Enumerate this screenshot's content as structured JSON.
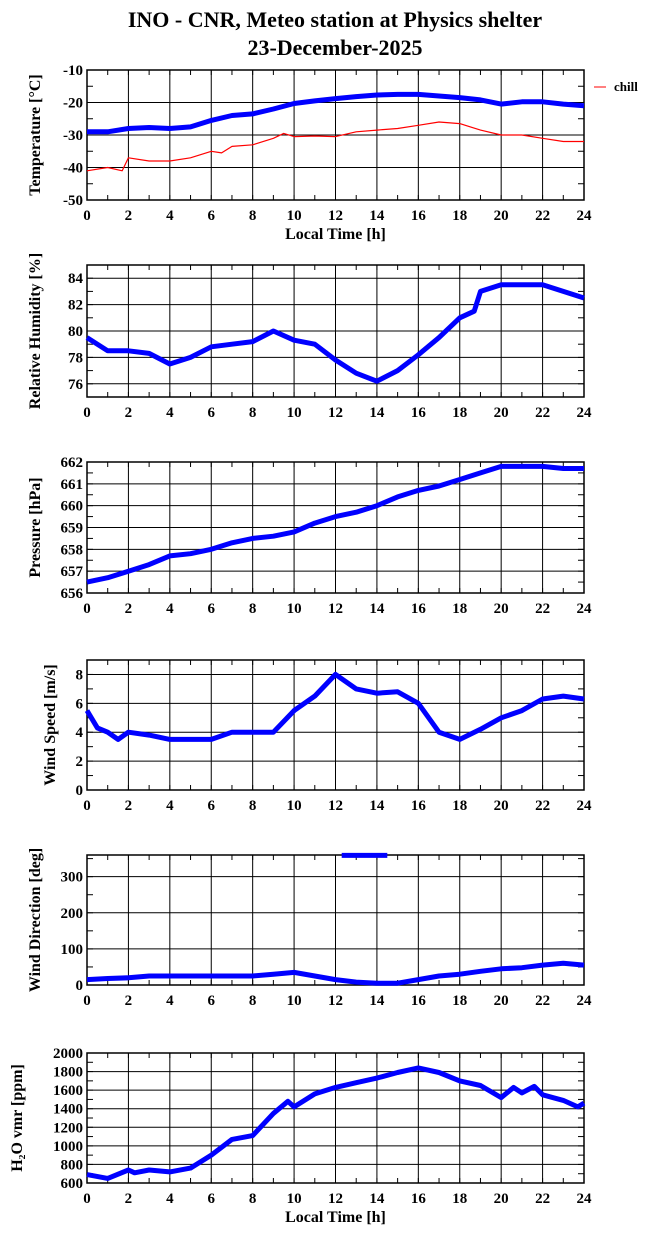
{
  "title": "INO - CNR, Meteo station at Physics shelter",
  "subtitle": "23-December-2025",
  "colors": {
    "primary": "#0000ff",
    "chill": "#ff0000",
    "grid": "#000000"
  },
  "chart_data": [
    {
      "type": "line",
      "ylabel": "Temperature [°C]",
      "xlabel": "Local Time [h]",
      "xlim": [
        0,
        24
      ],
      "ylim": [
        -50,
        -10
      ],
      "xticks": [
        "0",
        "2",
        "4",
        "6",
        "8",
        "10",
        "12",
        "14",
        "16",
        "18",
        "20",
        "22",
        "24"
      ],
      "yticks": [
        "-50",
        "-40",
        "-30",
        "-20",
        "-10"
      ],
      "legend": {
        "label": "chill",
        "placement": "right"
      },
      "series": [
        {
          "name": "temperature",
          "color": "#0000ff",
          "x": [
            0,
            1,
            2,
            3,
            4,
            5,
            6,
            7,
            8,
            9,
            10,
            11,
            12,
            13,
            14,
            15,
            16,
            17,
            18,
            19,
            20,
            21,
            22,
            23,
            24
          ],
          "y": [
            -29,
            -29,
            -28,
            -27.7,
            -28,
            -27.5,
            -25.5,
            -24,
            -23.5,
            -22,
            -20.3,
            -19.5,
            -18.8,
            -18.2,
            -17.7,
            -17.5,
            -17.5,
            -18,
            -18.5,
            -19.2,
            -20.5,
            -19.8,
            -19.8,
            -20.5,
            -21
          ]
        },
        {
          "name": "chill",
          "color": "#ff0000",
          "x": [
            0,
            1,
            1.7,
            2,
            3,
            4,
            5,
            6,
            6.5,
            7,
            8,
            9,
            9.5,
            10,
            11,
            12,
            13,
            14,
            15,
            16,
            17,
            18,
            19,
            20,
            21,
            22,
            23,
            24
          ],
          "y": [
            -41,
            -40,
            -41,
            -37,
            -38,
            -38,
            -37,
            -35,
            -35.5,
            -33.5,
            -33,
            -31,
            -29.5,
            -30.5,
            -30.3,
            -30.5,
            -29,
            -28.5,
            -28,
            -27,
            -26,
            -26.5,
            -28.5,
            -30,
            -30,
            -31,
            -32,
            -32
          ]
        }
      ]
    },
    {
      "type": "scatter",
      "ylabel": "Relative Humidity [%]",
      "xlim": [
        0,
        24
      ],
      "ylim": [
        75,
        85
      ],
      "xticks": [
        "0",
        "2",
        "4",
        "6",
        "8",
        "10",
        "12",
        "14",
        "16",
        "18",
        "20",
        "22",
        "24"
      ],
      "yticks": [
        "76",
        "78",
        "80",
        "82",
        "84"
      ],
      "series": [
        {
          "name": "humidity",
          "color": "#0000ff",
          "x": [
            0,
            1,
            2,
            3,
            4,
            5,
            6,
            7,
            8,
            9,
            10,
            11,
            12,
            13,
            14,
            15,
            16,
            17,
            18,
            18.7,
            19,
            20,
            21,
            22,
            23,
            24
          ],
          "y": [
            79.5,
            78.5,
            78.5,
            78.3,
            77.5,
            78,
            78.8,
            79,
            79.2,
            80,
            79.3,
            79,
            77.8,
            76.8,
            76.2,
            77,
            78.2,
            79.5,
            81,
            81.5,
            83,
            83.5,
            83.5,
            83.5,
            83,
            82.5
          ]
        }
      ]
    },
    {
      "type": "scatter",
      "ylabel": "Pressure [hPa]",
      "xlim": [
        0,
        24
      ],
      "ylim": [
        656,
        662
      ],
      "xticks": [
        "0",
        "2",
        "4",
        "6",
        "8",
        "10",
        "12",
        "14",
        "16",
        "18",
        "20",
        "22",
        "24"
      ],
      "yticks": [
        "656",
        "657",
        "658",
        "659",
        "660",
        "661",
        "662"
      ],
      "series": [
        {
          "name": "pressure",
          "color": "#0000ff",
          "x": [
            0,
            1,
            2,
            3,
            4,
            5,
            6,
            7,
            8,
            9,
            10,
            11,
            12,
            13,
            14,
            15,
            16,
            17,
            18,
            19,
            20,
            21,
            22,
            23,
            24
          ],
          "y": [
            656.5,
            656.7,
            657,
            657.3,
            657.7,
            657.8,
            658,
            658.3,
            658.5,
            658.6,
            658.8,
            659.2,
            659.5,
            659.7,
            660,
            660.4,
            660.7,
            660.9,
            661.2,
            661.5,
            661.8,
            661.8,
            661.8,
            661.7,
            661.7
          ]
        }
      ]
    },
    {
      "type": "scatter",
      "ylabel": "Wind Speed [m/s]",
      "xlim": [
        0,
        24
      ],
      "ylim": [
        0,
        9
      ],
      "xticks": [
        "0",
        "2",
        "4",
        "6",
        "8",
        "10",
        "12",
        "14",
        "16",
        "18",
        "20",
        "22",
        "24"
      ],
      "yticks": [
        "0",
        "2",
        "4",
        "6",
        "8"
      ],
      "series": [
        {
          "name": "wind speed",
          "color": "#0000ff",
          "x": [
            0,
            0.5,
            1,
            1.5,
            2,
            3,
            4,
            5,
            6,
            7,
            8,
            9,
            10,
            11,
            12,
            13,
            14,
            15,
            16,
            17,
            18,
            19,
            20,
            21,
            22,
            23,
            24
          ],
          "y": [
            5.5,
            4.3,
            4,
            3.5,
            4,
            3.8,
            3.5,
            3.5,
            3.5,
            4,
            4,
            4,
            5.5,
            6.5,
            8,
            7,
            6.7,
            6.8,
            6,
            4,
            3.5,
            4.2,
            5,
            5.5,
            6.3,
            6.5,
            6.3
          ]
        }
      ]
    },
    {
      "type": "scatter",
      "ylabel": "Wind Direction [deg]",
      "xlim": [
        0,
        24
      ],
      "ylim": [
        0,
        360
      ],
      "xticks": [
        "0",
        "2",
        "4",
        "6",
        "8",
        "10",
        "12",
        "14",
        "16",
        "18",
        "20",
        "22",
        "24"
      ],
      "yticks": [
        "0",
        "100",
        "200",
        "300"
      ],
      "series": [
        {
          "name": "wind direction",
          "color": "#0000ff",
          "x": [
            0,
            1,
            2,
            3,
            4,
            5,
            6,
            7,
            8,
            9,
            10,
            11,
            12,
            13,
            14,
            15,
            16,
            17,
            18,
            19,
            20,
            21,
            22,
            23,
            24
          ],
          "y": [
            15,
            18,
            20,
            25,
            25,
            25,
            25,
            25,
            25,
            30,
            35,
            25,
            15,
            8,
            5,
            5,
            15,
            25,
            30,
            38,
            45,
            48,
            55,
            60,
            55
          ]
        },
        {
          "name": "wind direction wrap",
          "color": "#0000ff",
          "x": [
            12.3,
            14.5
          ],
          "y": [
            359,
            359
          ]
        }
      ]
    },
    {
      "type": "scatter",
      "ylabel": "H₂O vmr [ppm]",
      "xlabel": "Local Time [h]",
      "xlim": [
        0,
        24
      ],
      "ylim": [
        600,
        2000
      ],
      "xticks": [
        "0",
        "2",
        "4",
        "6",
        "8",
        "10",
        "12",
        "14",
        "16",
        "18",
        "20",
        "22",
        "24"
      ],
      "yticks": [
        "600",
        "800",
        "1000",
        "1200",
        "1400",
        "1600",
        "1800",
        "2000"
      ],
      "series": [
        {
          "name": "h2o",
          "color": "#0000ff",
          "x": [
            0,
            1,
            2,
            2.3,
            3,
            4,
            5,
            6,
            7,
            8,
            9,
            9.7,
            10,
            11,
            12,
            13,
            14,
            15,
            16,
            17,
            18,
            19,
            20,
            20.6,
            21,
            21.6,
            22,
            23,
            23.7,
            24
          ],
          "y": [
            690,
            650,
            740,
            710,
            740,
            720,
            760,
            900,
            1070,
            1110,
            1350,
            1480,
            1420,
            1560,
            1630,
            1680,
            1730,
            1790,
            1840,
            1790,
            1700,
            1650,
            1520,
            1630,
            1570,
            1640,
            1550,
            1490,
            1420,
            1460
          ]
        }
      ]
    }
  ]
}
